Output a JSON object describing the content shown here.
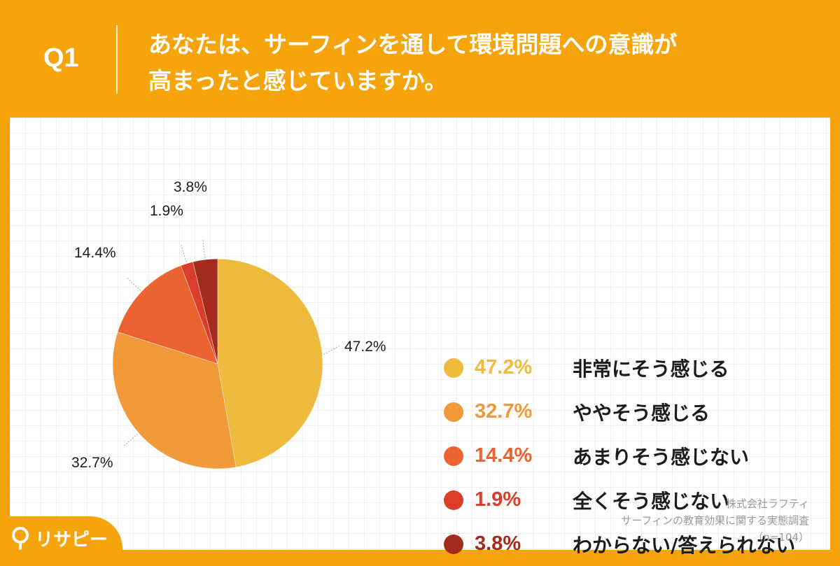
{
  "header": {
    "q_label": "Q1",
    "question_line1": "あなたは、サーフィンを通して環境問題への意識が",
    "question_line2": "高まったと感じていますか。"
  },
  "chart_data": {
    "type": "pie",
    "title": "あなたは、サーフィンを通して環境問題への意識が高まったと感じていますか。",
    "slices": [
      {
        "label": "非常にそう感じる",
        "value": 47.2,
        "display": "47.2%",
        "color": "#efbb3f"
      },
      {
        "label": "ややそう感じる",
        "value": 32.7,
        "display": "32.7%",
        "color": "#f09a3a"
      },
      {
        "label": "あまりそう感じない",
        "value": 14.4,
        "display": "14.4%",
        "color": "#ec6332"
      },
      {
        "label": "全くそう感じない",
        "value": 1.9,
        "display": "1.9%",
        "color": "#dc3d2a"
      },
      {
        "label": "わからない/答えられない",
        "value": 3.8,
        "display": "3.8%",
        "color": "#a32b1b"
      }
    ],
    "legend_position": "right"
  },
  "source": {
    "company": "株式会社ラフティ",
    "survey": "サーフィンの教育効果に関する実態調査",
    "sample": "（n=104）"
  },
  "brand": {
    "name": "リサピー"
  },
  "colors": {
    "background": "#f5a40c",
    "card": "#ffffff"
  }
}
